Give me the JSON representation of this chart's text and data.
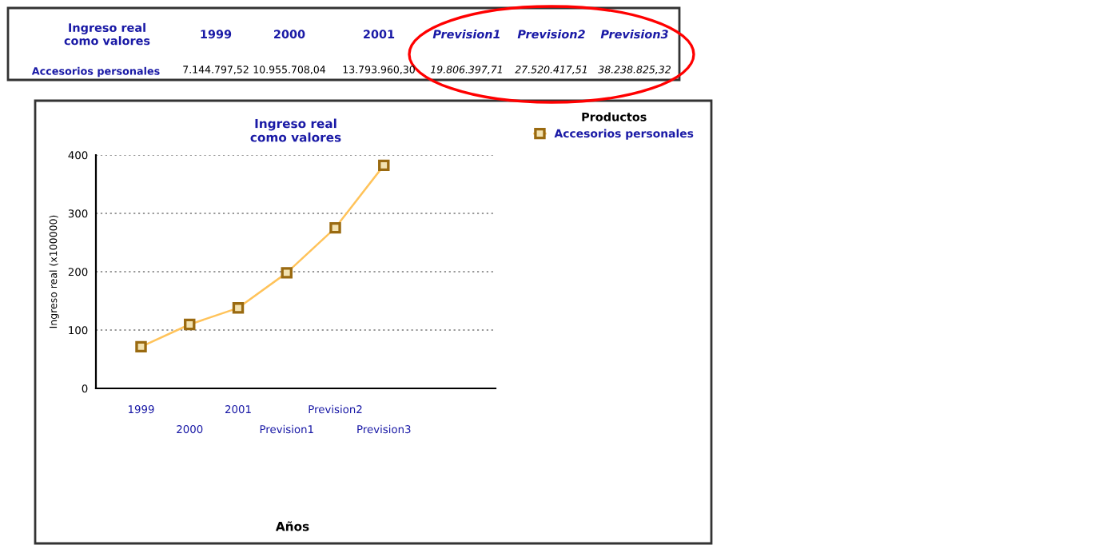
{
  "chart_data": {
    "type": "line",
    "title": "Ingreso real\ncomo valores",
    "ylabel": "Ingreso real (x100000)",
    "legend_title": "Productos",
    "categories": [
      "1999",
      "2000",
      "2001",
      "Prevision1",
      "Prevision2",
      "Prevision3"
    ],
    "series": [
      {
        "name": "Accesorios personales",
        "color": "#ffc35a",
        "values": [
          71.4,
          109.6,
          137.9,
          198.1,
          275.2,
          382.4
        ]
      }
    ],
    "annotations": [
      "Ingreso real\ncomo valores",
      "7.144.797,52",
      "10.955.708,04",
      "13.793.960,30",
      "19.806.397,71",
      "27.520.417,51",
      "38.238.825,32",
      "Años"
    ],
    "ylim": [
      0,
      400
    ],
    "yticks": [
      0,
      100,
      200,
      300,
      400
    ],
    "grid": "y",
    "legend": "right",
    "marker": "square",
    "line_style": "solid"
  }
}
